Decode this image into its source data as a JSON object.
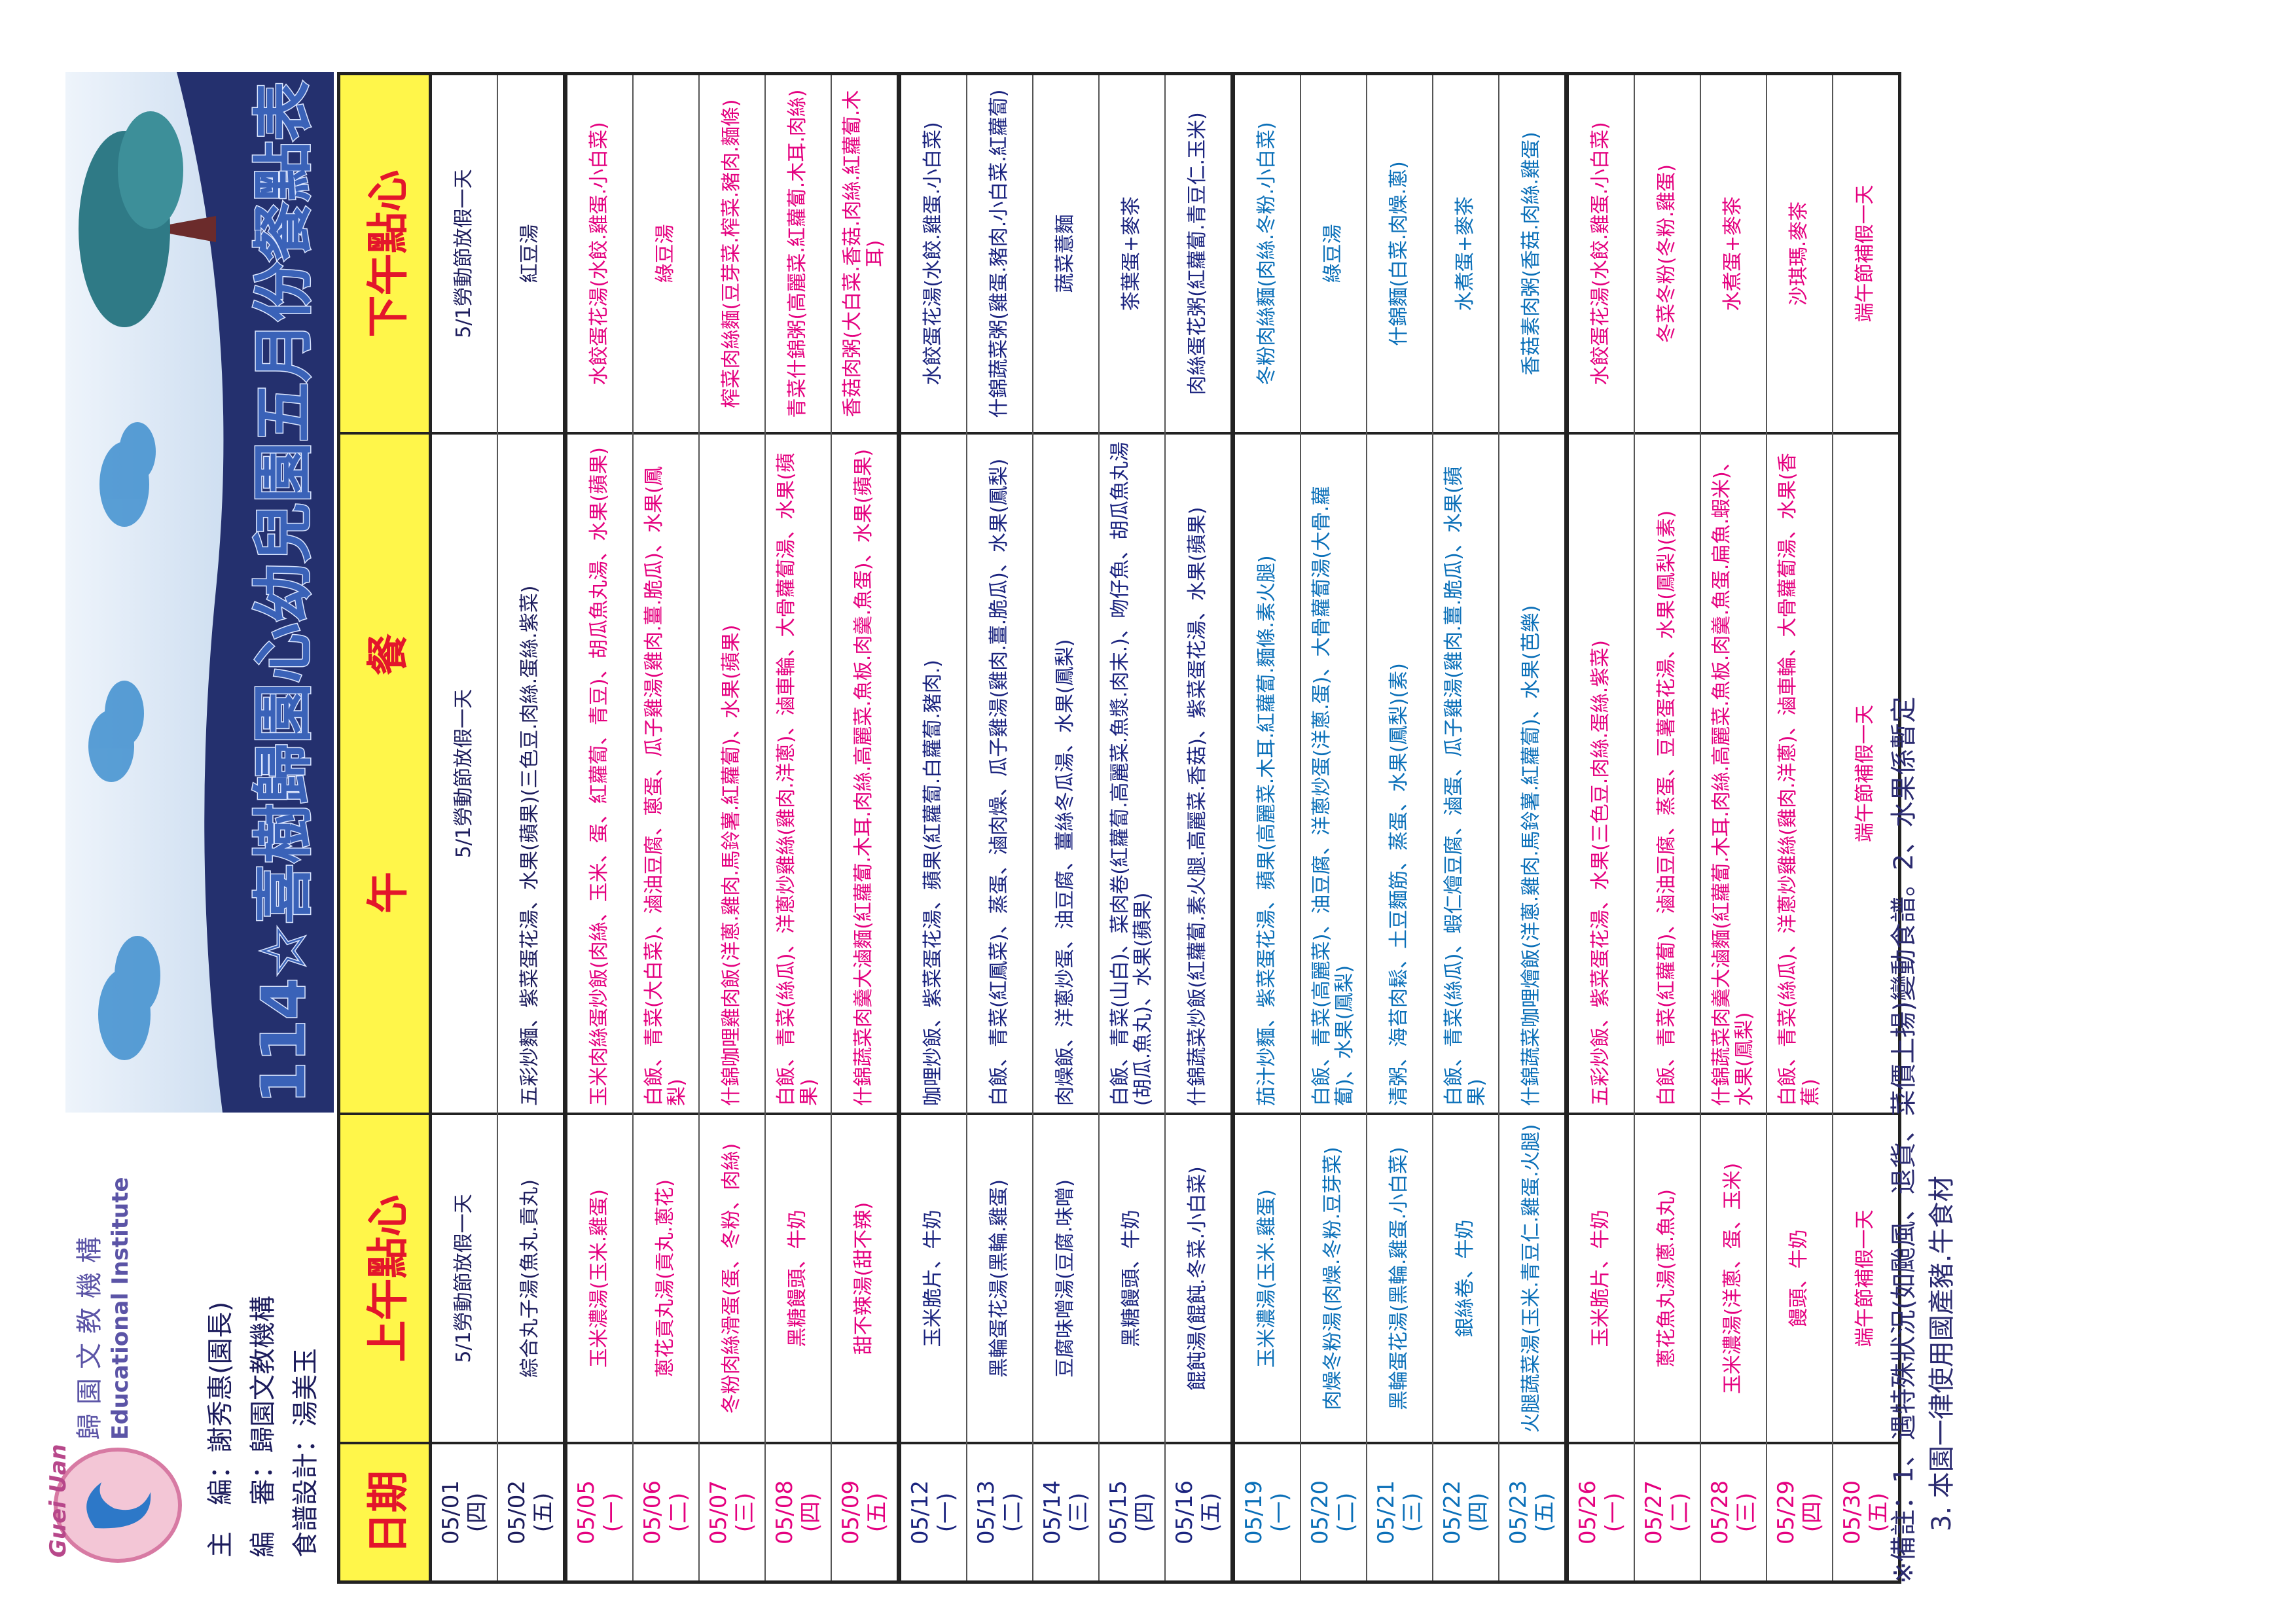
{
  "header": {
    "logo_name": "歸園文教機構",
    "logo_en": "Educational Institute",
    "logo_pinyin": "Guei Uan",
    "editor": "主　編：謝秀惠(園長)",
    "reviewer": "編　審：歸園文教機構",
    "designer": "食譜設計：湯美玉"
  },
  "title": "114☆喜樹歸園心幼兒園五月份餐點表",
  "table": {
    "columns": [
      "日期",
      "上午點心",
      "午餐",
      "下午點心"
    ],
    "weeks": [
      {
        "color": "#1c1c5c",
        "rows": [
          {
            "date": "05/01",
            "weekday": "(四)",
            "morning": "5/1勞動節放假一天",
            "lunch": "5/1勞動節放假一天",
            "afternoon": "5/1勞動節放假一天"
          },
          {
            "date": "05/02",
            "weekday": "(五)",
            "morning": "綜合丸子湯(魚丸.貢丸)",
            "lunch": "五彩炒麵、紫菜蛋花湯、水果(蘋果)(三色豆.肉絲.蛋絲.紫菜)",
            "afternoon": "紅豆湯"
          }
        ]
      },
      {
        "color": "#e4007f",
        "rows": [
          {
            "date": "05/05",
            "weekday": "(一)",
            "morning": "玉米濃湯(玉米.雞蛋)",
            "lunch": "玉米肉絲蛋炒飯(肉絲、玉米、蛋、紅蘿蔔、青豆)、胡瓜魚丸湯、水果(蘋果)",
            "afternoon": "水餃蛋花湯(水餃.雞蛋.小白菜)"
          },
          {
            "date": "05/06",
            "weekday": "(二)",
            "morning": "蔥花貢丸湯(貢丸.蔥花)",
            "lunch": "白飯、青菜(大白菜)、滷油豆腐、蔥蛋、瓜子雞湯(雞肉.薑.脆瓜)、水果(鳳梨)",
            "afternoon": "綠豆湯"
          },
          {
            "date": "05/07",
            "weekday": "(三)",
            "morning": "冬粉肉絲滑蛋(蛋、冬粉、肉絲)",
            "lunch": "什錦咖哩雞肉飯(洋蔥.雞肉.馬鈴薯.紅蘿蔔)、水果(蘋果)",
            "afternoon": "榨菜肉絲麵(豆芽菜.榨菜.豬肉.麵條)"
          },
          {
            "date": "05/08",
            "weekday": "(四)",
            "morning": "黑糖饅頭、牛奶",
            "lunch": "白飯、青菜(絲瓜)、洋蔥炒雞絲(雞肉.洋蔥)、滷車輪、大骨蘿蔔湯、水果(蘋果)",
            "afternoon": "青菜什錦粥(高麗菜.紅蘿蔔.木耳.肉絲)"
          },
          {
            "date": "05/09",
            "weekday": "(五)",
            "morning": "甜不辣湯(甜不辣)",
            "lunch": "什錦蔬菜肉羹大滷麵(紅蘿蔔.木耳.肉絲.高麗菜.魚板.肉羹.魚蛋)、水果(蘋果)",
            "afternoon": "香菇肉粥(大白菜.香菇.肉絲.紅蘿蔔.木耳)"
          }
        ]
      },
      {
        "color": "#1a237e",
        "rows": [
          {
            "date": "05/12",
            "weekday": "(一)",
            "morning": "玉米脆片、牛奶",
            "lunch": "咖哩炒飯、紫菜蛋花湯、蘋果(紅蘿蔔.白蘿蔔.豬肉.)",
            "afternoon": "水餃蛋花湯(水餃.雞蛋.小白菜)"
          },
          {
            "date": "05/13",
            "weekday": "(二)",
            "morning": "黑輪蛋花湯(黑輪.雞蛋)",
            "lunch": "白飯、青菜(紅鳳菜)、蒸蛋、滷肉燥、瓜子雞湯(雞肉.薑.脆瓜)、水果(鳳梨)",
            "afternoon": "什錦蔬菜粥(雞蛋.豬肉.小白菜.紅蘿蔔)"
          },
          {
            "date": "05/14",
            "weekday": "(三)",
            "morning": "豆腐味噌湯(豆腐.味噌)",
            "lunch": "肉燥飯、洋蔥炒蛋、油豆腐、薑絲冬瓜湯、水果(鳳梨)",
            "afternoon": "蔬菜薏麵"
          },
          {
            "date": "05/15",
            "weekday": "(四)",
            "morning": "黑糖饅頭、牛奶",
            "lunch": "白飯、青菜(山白)、菜肉卷(紅蘿蔔.高麗菜.魚漿.肉末.)、吻仔魚、胡瓜魚丸湯(胡瓜.魚丸)、水果(蘋果)",
            "afternoon": "茶葉蛋+麥茶"
          },
          {
            "date": "05/16",
            "weekday": "(五)",
            "morning": "餛飩湯(餛飩.冬菜.小白菜)",
            "lunch": "什錦蔬菜炒飯(紅蘿蔔.素火腿.高麗菜.香菇)、紫菜蛋花湯、水果(蘋果)",
            "afternoon": "肉絲蛋花粥(紅蘿蔔.青豆仁.玉米)"
          }
        ]
      },
      {
        "color": "#0a6fb8",
        "rows": [
          {
            "date": "05/19",
            "weekday": "(一)",
            "morning": "玉米濃湯(玉米.雞蛋)",
            "lunch": "茄汁炒麵、紫菜蛋花湯、蘋果(高麗菜.木耳.紅蘿蔔.麵條.素火腿)",
            "afternoon": "冬粉肉絲麵(肉絲.冬粉.小白菜)"
          },
          {
            "date": "05/20",
            "weekday": "(二)",
            "morning": "肉燥冬粉湯(肉燥.冬粉.豆芽菜)",
            "lunch": "白飯、青菜(高麗菜)、油豆腐、洋蔥炒蛋(洋蔥.蛋)、大骨蘿蔔湯(大骨.蘿蔔)、水果(鳳梨)",
            "afternoon": "綠豆湯"
          },
          {
            "date": "05/21",
            "weekday": "(三)",
            "morning": "黑輪蛋花湯(黑輪.雞蛋.小白菜)",
            "lunch": "清粥、海苔肉鬆、土豆麵筋、蒸蛋、水果(鳳梨)(素)",
            "afternoon": "什錦麵(白菜.肉燥.蔥)"
          },
          {
            "date": "05/22",
            "weekday": "(四)",
            "morning": "銀絲卷、牛奶",
            "lunch": "白飯、青菜(絲瓜)、蝦仁燴豆腐、滷蛋、瓜子雞湯(雞肉.薑.脆瓜)、水果(蘋果)",
            "afternoon": "水煮蛋+麥茶"
          },
          {
            "date": "05/23",
            "weekday": "(五)",
            "morning": "火腿蔬菜湯(玉米.青豆仁.雞蛋.火腿)",
            "lunch": "什錦蔬菜咖哩燴飯(洋蔥.雞肉.馬鈴薯.紅蘿蔔)、水果(芭樂)",
            "afternoon": "香菇素肉粥(香菇.肉絲.雞蛋)"
          }
        ]
      },
      {
        "color": "#e4007f",
        "rows": [
          {
            "date": "05/26",
            "weekday": "(一)",
            "morning": "玉米脆片、牛奶",
            "lunch": "五彩炒飯、紫菜蛋花湯、水果(三色豆.肉絲.蛋絲.紫菜)",
            "afternoon": "水餃蛋花湯(水餃.雞蛋.小白菜)"
          },
          {
            "date": "05/27",
            "weekday": "(二)",
            "morning": "蔥花魚丸湯(蔥.魚丸)",
            "lunch": "白飯、青菜(紅蘿蔔)、滷油豆腐、蒸蛋、豆薯蛋花湯、水果(鳳梨)(素)",
            "afternoon": "冬菜冬粉(冬粉.雞蛋)"
          },
          {
            "date": "05/28",
            "weekday": "(三)",
            "morning": "玉米濃湯(洋蔥、蛋、玉米)",
            "lunch": "什錦蔬菜肉羹大滷麵(紅蘿蔔.木耳.肉絲.高麗菜.魚板.肉羹.魚蛋.扁魚.蝦米)、水果(鳳梨)",
            "afternoon": "水煮蛋+麥茶"
          },
          {
            "date": "05/29",
            "weekday": "(四)",
            "morning": "饅頭、牛奶",
            "lunch": "白飯、青菜(絲瓜)、洋蔥炒雞絲(雞肉.洋蔥)、滷車輪、大骨蘿蔔湯、水果(香蕉)",
            "afternoon": "沙琪瑪.麥茶"
          },
          {
            "date": "05/30",
            "weekday": "(五)",
            "morning": "端午節補假一天",
            "lunch": "端午節補假一天",
            "afternoon": "端午節補假一天"
          }
        ]
      }
    ]
  },
  "notes": [
    "※備註：1、遇特殊狀況(如颱風、退貨、菜價上揚)變動食譜。2、水果係暫定",
    "3. 本園一律使用國產豬.牛食材"
  ]
}
